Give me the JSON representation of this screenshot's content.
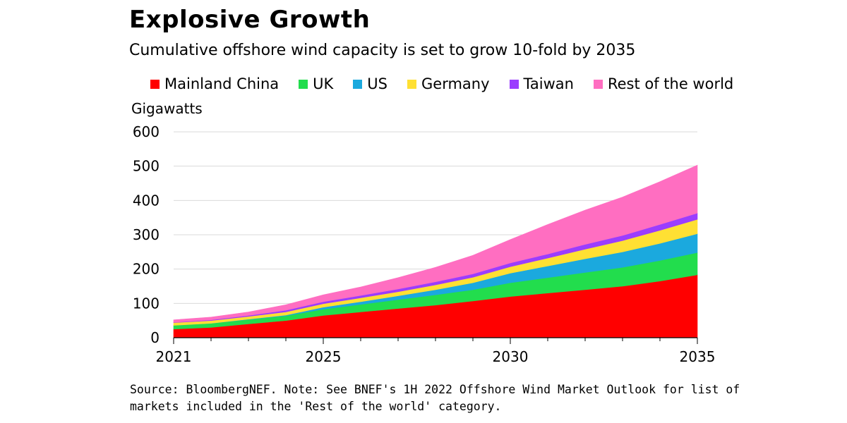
{
  "header": {
    "title": "Explosive Growth",
    "subtitle": "Cumulative offshore wind capacity is set to grow 10-fold by 2035"
  },
  "footer": {
    "note": "Source: BloombergNEF. Note: See BNEF's 1H 2022 Offshore Wind Market Outlook for list of markets included in the 'Rest of the world' category."
  },
  "chart_data": {
    "type": "area",
    "stacked": true,
    "title": "Explosive Growth",
    "subtitle": "Cumulative offshore wind capacity is set to grow 10-fold by 2035",
    "xlabel": "",
    "ylabel": "Gigawatts",
    "x": [
      2021,
      2022,
      2023,
      2024,
      2025,
      2026,
      2027,
      2028,
      2029,
      2030,
      2031,
      2032,
      2033,
      2034,
      2035
    ],
    "xticks": [
      "2021",
      "2025",
      "2030",
      "2035"
    ],
    "yticks": [
      "0",
      "100",
      "200",
      "300",
      "400",
      "500",
      "600"
    ],
    "xlim": [
      2021,
      2035
    ],
    "ylim": [
      0,
      600
    ],
    "grid": "horizontal",
    "legend_position": "top",
    "series": [
      {
        "name": "Mainland China",
        "color": "#ff0000",
        "values": [
          25,
          30,
          40,
          50,
          65,
          75,
          85,
          95,
          107,
          120,
          130,
          140,
          150,
          165,
          183
        ]
      },
      {
        "name": "UK",
        "color": "#22dd4d",
        "values": [
          11,
          12,
          13,
          14,
          18,
          22,
          26,
          30,
          33,
          40,
          45,
          50,
          55,
          60,
          65
        ]
      },
      {
        "name": "US",
        "color": "#1ba9de",
        "values": [
          0,
          0,
          1,
          2,
          6,
          8,
          11,
          15,
          20,
          28,
          34,
          40,
          45,
          50,
          55
        ]
      },
      {
        "name": "Germany",
        "color": "#ffe033",
        "values": [
          8,
          8,
          8,
          9,
          10,
          11,
          12,
          14,
          16,
          19,
          23,
          28,
          33,
          38,
          42
        ]
      },
      {
        "name": "Taiwan",
        "color": "#9b3dff",
        "values": [
          1,
          2,
          3,
          5,
          6,
          7,
          8,
          9,
          10,
          11,
          12,
          14,
          15,
          17,
          18
        ]
      },
      {
        "name": "Rest of the world",
        "color": "#ff6ec1",
        "values": [
          7,
          8,
          10,
          16,
          20,
          25,
          33,
          42,
          54,
          68,
          86,
          100,
          112,
          125,
          140
        ]
      }
    ]
  }
}
